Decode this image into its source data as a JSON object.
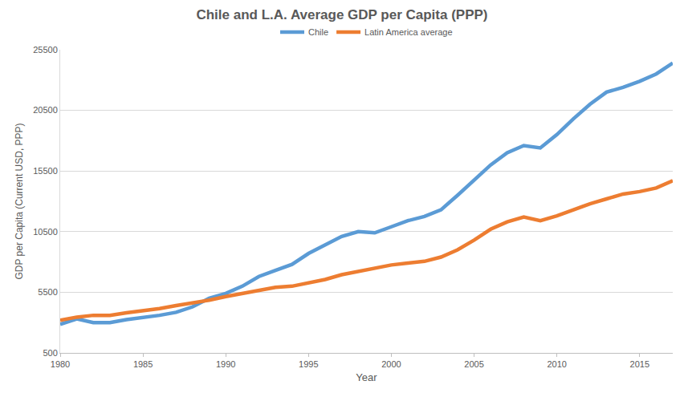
{
  "chart_data": {
    "type": "line",
    "title": "Chile and L.A. Average GDP per Capita (PPP)",
    "x_label": "Year",
    "y_label": "GDP per Capita (Current USD, PPP)",
    "x": [
      1980,
      1981,
      1982,
      1983,
      1984,
      1985,
      1986,
      1987,
      1988,
      1989,
      1990,
      1991,
      1992,
      1993,
      1994,
      1995,
      1996,
      1997,
      1998,
      1999,
      2000,
      2001,
      2002,
      2003,
      2004,
      2005,
      2006,
      2007,
      2008,
      2009,
      2010,
      2011,
      2012,
      2013,
      2014,
      2015,
      2016,
      2017
    ],
    "series": [
      {
        "name": "Chile",
        "color": "#5b9bd5",
        "values": [
          2850,
          3300,
          3000,
          3000,
          3250,
          3400,
          3600,
          3850,
          4300,
          5000,
          5400,
          6000,
          6800,
          7300,
          7800,
          8700,
          9400,
          10100,
          10500,
          10400,
          10900,
          11400,
          11750,
          12300,
          13500,
          14800,
          16000,
          17000,
          17600,
          17400,
          18500,
          19800,
          21000,
          22000,
          22400,
          22900,
          23500,
          24400
        ]
      },
      {
        "name": "Latin America average",
        "color": "#ed7d31",
        "values": [
          3200,
          3450,
          3600,
          3600,
          3800,
          3950,
          4150,
          4400,
          4600,
          4850,
          5150,
          5400,
          5600,
          5900,
          6000,
          6250,
          6550,
          6950,
          7200,
          7450,
          7750,
          7900,
          8050,
          8400,
          9000,
          9800,
          10700,
          11300,
          11700,
          11400,
          11800,
          12300,
          12800,
          13200,
          13600,
          13800,
          14100,
          14700
        ]
      }
    ],
    "xlim": [
      1980,
      2017
    ],
    "xticks": [
      1980,
      1985,
      1990,
      1995,
      2000,
      2005,
      2010,
      2015
    ],
    "ylim": [
      500,
      25500
    ],
    "yticks": [
      500,
      5500,
      10500,
      15500,
      20500,
      25500
    ],
    "grid": true,
    "legend": "top"
  }
}
